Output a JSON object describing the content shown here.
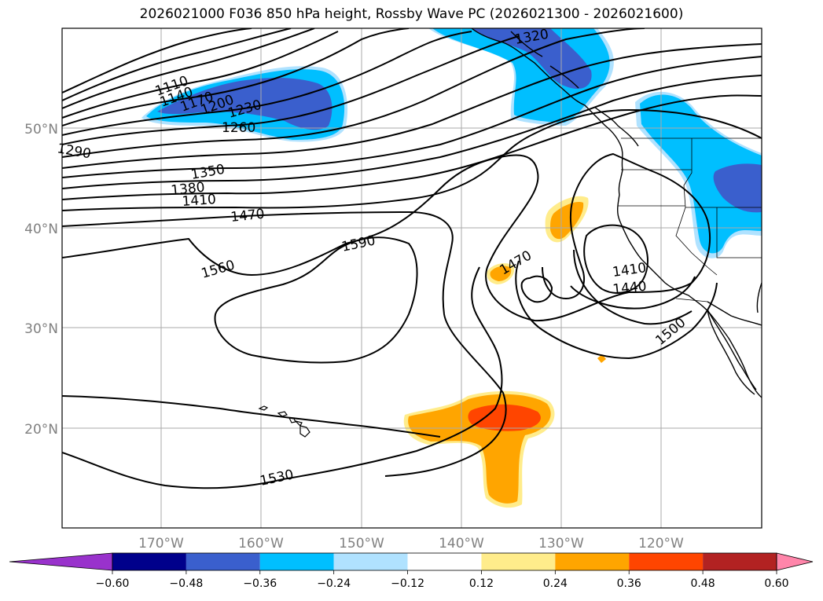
{
  "title": "2026021000 F036 850 hPa height, Rossby Wave PC (2026021300 - 2026021600)",
  "lat_labels": [
    {
      "label": "50°N",
      "lat": 50
    },
    {
      "label": "40°N",
      "lat": 40
    },
    {
      "label": "30°N",
      "lat": 30
    },
    {
      "label": "20°N",
      "lat": 20
    }
  ],
  "lon_labels": [
    {
      "label": "170°W",
      "lon": -170
    },
    {
      "label": "160°W",
      "lon": -160
    },
    {
      "label": "150°W",
      "lon": -150
    },
    {
      "label": "140°W",
      "lon": -140
    },
    {
      "label": "130°W",
      "lon": -130
    },
    {
      "label": "120°W",
      "lon": -120
    }
  ],
  "extent": {
    "lon_min": -180,
    "lon_max": -110,
    "lat_min": 10,
    "lat_max": 60
  },
  "contour_labels": [
    "1110",
    "1140",
    "1170",
    "1200",
    "1230",
    "1260",
    "1290",
    "1320",
    "1350",
    "1380",
    "1410",
    "1440",
    "1470",
    "1500",
    "1530",
    "1560",
    "1590"
  ],
  "colorbar": {
    "ticks": [
      "−0.60",
      "−0.48",
      "−0.36",
      "−0.24",
      "−0.12",
      "0.12",
      "0.24",
      "0.36",
      "0.48",
      "0.60"
    ],
    "colors": [
      "#9932cc",
      "#00008b",
      "#3a5fcd",
      "#00bfff",
      "#b0e2ff",
      "#ffffff",
      "#ffec8b",
      "#ffa500",
      "#ff4500",
      "#b22222",
      "#ff85aa"
    ]
  }
}
